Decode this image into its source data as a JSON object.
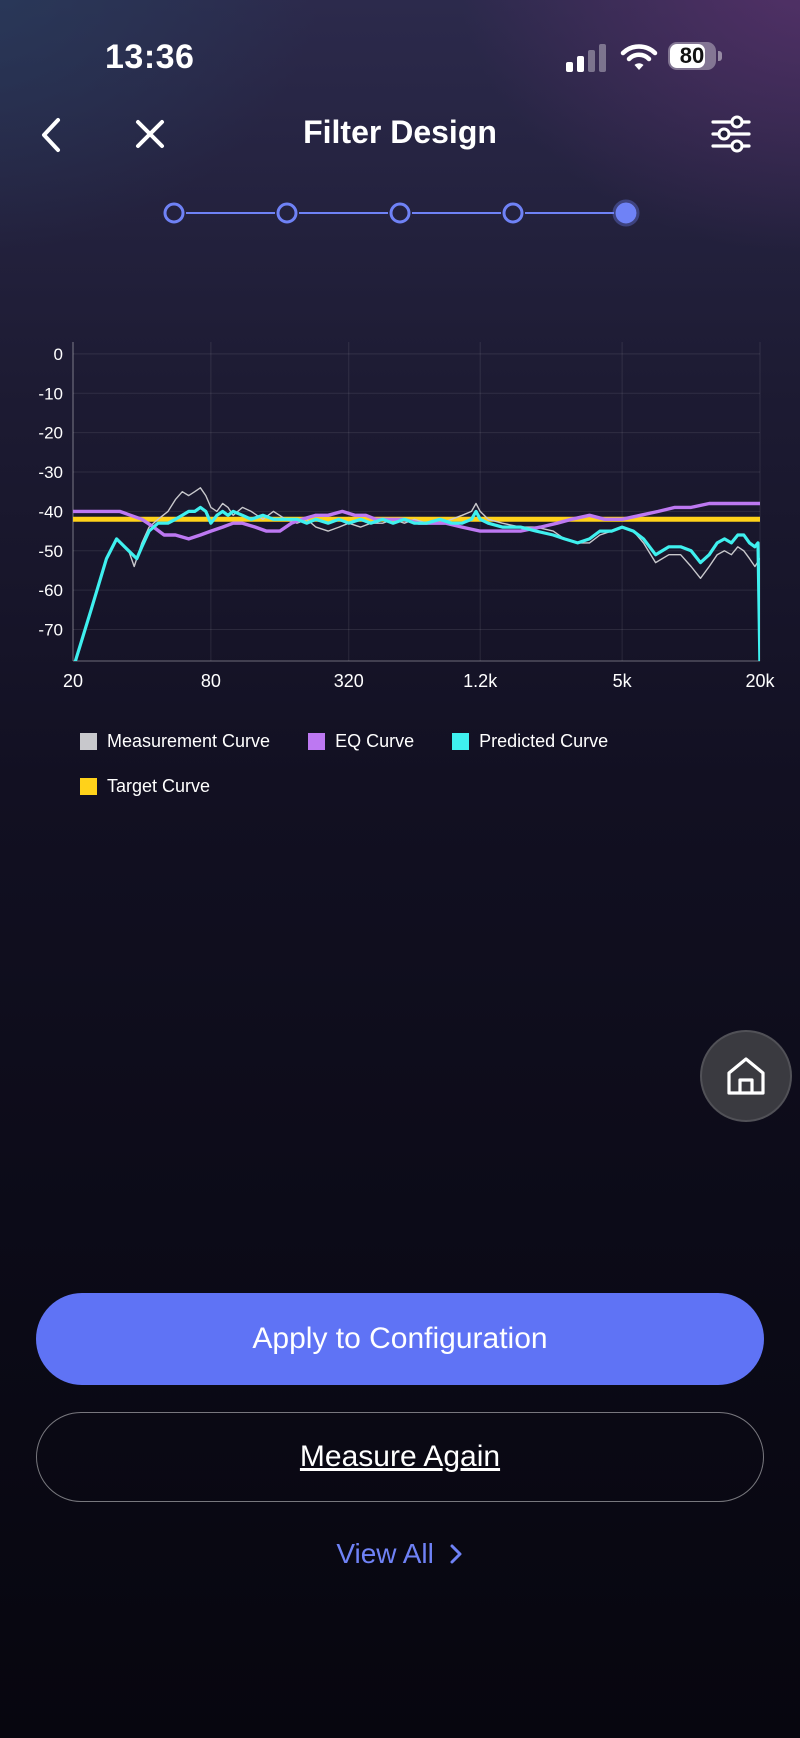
{
  "status_bar": {
    "time": "13:36",
    "battery_level": "80",
    "icons": [
      "signal-icon",
      "wifi-icon",
      "battery-icon"
    ]
  },
  "nav": {
    "title": "Filter Design",
    "left_icons": [
      "chevron-left-icon",
      "close-icon"
    ],
    "right_icon": "sliders-icon"
  },
  "stepper": {
    "steps": 5,
    "current": 5,
    "accent_color": "#6f82f6"
  },
  "chart_data": {
    "type": "line",
    "x_scale": "log",
    "x_ticks": [
      "20",
      "80",
      "320",
      "1.2k",
      "5k",
      "20k"
    ],
    "y_ticks": [
      "0",
      "-10",
      "-20",
      "-30",
      "-40",
      "-50",
      "-60",
      "-70"
    ],
    "ylim": [
      -78,
      2
    ],
    "xlim": [
      20,
      20000
    ],
    "grid": true,
    "legend_position": "bottom",
    "series": [
      {
        "name": "Measurement Curve",
        "color": "#c8c8cc",
        "points": [
          [
            20,
            -80
          ],
          [
            24,
            -65
          ],
          [
            28,
            -52
          ],
          [
            31,
            -47
          ],
          [
            35,
            -50
          ],
          [
            37,
            -54
          ],
          [
            40,
            -48
          ],
          [
            43,
            -44
          ],
          [
            47,
            -42
          ],
          [
            52,
            -40
          ],
          [
            56,
            -37
          ],
          [
            60,
            -35
          ],
          [
            64,
            -36
          ],
          [
            68,
            -35
          ],
          [
            72,
            -34
          ],
          [
            76,
            -36
          ],
          [
            80,
            -39
          ],
          [
            85,
            -40
          ],
          [
            90,
            -38
          ],
          [
            95,
            -39
          ],
          [
            100,
            -41
          ],
          [
            110,
            -39
          ],
          [
            120,
            -40
          ],
          [
            135,
            -42
          ],
          [
            150,
            -40
          ],
          [
            170,
            -42
          ],
          [
            190,
            -43
          ],
          [
            210,
            -42
          ],
          [
            230,
            -44
          ],
          [
            260,
            -45
          ],
          [
            290,
            -44
          ],
          [
            320,
            -43
          ],
          [
            360,
            -44
          ],
          [
            400,
            -43
          ],
          [
            450,
            -43
          ],
          [
            500,
            -42
          ],
          [
            560,
            -43
          ],
          [
            620,
            -42
          ],
          [
            700,
            -43
          ],
          [
            800,
            -43
          ],
          [
            900,
            -42
          ],
          [
            1000,
            -41
          ],
          [
            1100,
            -40
          ],
          [
            1150,
            -38
          ],
          [
            1200,
            -40
          ],
          [
            1300,
            -42
          ],
          [
            1500,
            -43
          ],
          [
            1800,
            -44
          ],
          [
            2100,
            -44
          ],
          [
            2500,
            -45
          ],
          [
            2800,
            -47
          ],
          [
            3200,
            -48
          ],
          [
            3600,
            -48
          ],
          [
            4000,
            -46
          ],
          [
            4500,
            -45
          ],
          [
            5000,
            -44
          ],
          [
            5600,
            -45
          ],
          [
            6200,
            -48
          ],
          [
            7000,
            -53
          ],
          [
            8000,
            -51
          ],
          [
            9000,
            -51
          ],
          [
            10000,
            -54
          ],
          [
            11000,
            -57
          ],
          [
            12000,
            -54
          ],
          [
            13000,
            -51
          ],
          [
            14000,
            -50
          ],
          [
            15000,
            -51
          ],
          [
            16000,
            -49
          ],
          [
            17000,
            -50
          ],
          [
            18000,
            -52
          ],
          [
            19000,
            -54
          ],
          [
            20000,
            -52
          ]
        ]
      },
      {
        "name": "EQ Curve",
        "color": "#bd78f2",
        "points": [
          [
            20,
            -40
          ],
          [
            25,
            -40
          ],
          [
            32,
            -40
          ],
          [
            40,
            -42
          ],
          [
            45,
            -44
          ],
          [
            50,
            -46
          ],
          [
            56,
            -46
          ],
          [
            64,
            -47
          ],
          [
            72,
            -46
          ],
          [
            80,
            -45
          ],
          [
            90,
            -44
          ],
          [
            100,
            -43
          ],
          [
            110,
            -43
          ],
          [
            125,
            -44
          ],
          [
            140,
            -45
          ],
          [
            160,
            -45
          ],
          [
            180,
            -43
          ],
          [
            200,
            -42
          ],
          [
            230,
            -41
          ],
          [
            260,
            -41
          ],
          [
            300,
            -40
          ],
          [
            340,
            -41
          ],
          [
            380,
            -41
          ],
          [
            420,
            -42
          ],
          [
            480,
            -42
          ],
          [
            550,
            -42
          ],
          [
            650,
            -43
          ],
          [
            750,
            -43
          ],
          [
            850,
            -43
          ],
          [
            1000,
            -44
          ],
          [
            1200,
            -45
          ],
          [
            1500,
            -45
          ],
          [
            1800,
            -45
          ],
          [
            2200,
            -44
          ],
          [
            2600,
            -43
          ],
          [
            3000,
            -42
          ],
          [
            3600,
            -41
          ],
          [
            4200,
            -42
          ],
          [
            5000,
            -42
          ],
          [
            6000,
            -41
          ],
          [
            7200,
            -40
          ],
          [
            8500,
            -39
          ],
          [
            10000,
            -39
          ],
          [
            12000,
            -38
          ],
          [
            14000,
            -38
          ],
          [
            17000,
            -38
          ],
          [
            20000,
            -38
          ]
        ]
      },
      {
        "name": "Predicted Curve",
        "color": "#3ff0ef",
        "points": [
          [
            20,
            -80
          ],
          [
            24,
            -65
          ],
          [
            28,
            -52
          ],
          [
            31,
            -47
          ],
          [
            35,
            -50
          ],
          [
            38,
            -52
          ],
          [
            40,
            -49
          ],
          [
            43,
            -45
          ],
          [
            47,
            -43
          ],
          [
            52,
            -43
          ],
          [
            56,
            -42
          ],
          [
            60,
            -41
          ],
          [
            64,
            -40
          ],
          [
            68,
            -40
          ],
          [
            72,
            -39
          ],
          [
            76,
            -40
          ],
          [
            80,
            -43
          ],
          [
            85,
            -41
          ],
          [
            90,
            -40
          ],
          [
            95,
            -41
          ],
          [
            100,
            -40
          ],
          [
            110,
            -41
          ],
          [
            120,
            -42
          ],
          [
            135,
            -41
          ],
          [
            150,
            -42
          ],
          [
            170,
            -42
          ],
          [
            190,
            -42
          ],
          [
            210,
            -43
          ],
          [
            230,
            -42
          ],
          [
            260,
            -43
          ],
          [
            290,
            -42
          ],
          [
            320,
            -43
          ],
          [
            360,
            -42
          ],
          [
            400,
            -43
          ],
          [
            450,
            -42
          ],
          [
            500,
            -43
          ],
          [
            560,
            -42
          ],
          [
            620,
            -43
          ],
          [
            700,
            -43
          ],
          [
            800,
            -42
          ],
          [
            900,
            -43
          ],
          [
            1000,
            -43
          ],
          [
            1100,
            -42
          ],
          [
            1150,
            -40
          ],
          [
            1200,
            -42
          ],
          [
            1300,
            -43
          ],
          [
            1500,
            -44
          ],
          [
            1800,
            -44
          ],
          [
            2100,
            -45
          ],
          [
            2500,
            -46
          ],
          [
            2800,
            -47
          ],
          [
            3200,
            -48
          ],
          [
            3600,
            -47
          ],
          [
            4000,
            -45
          ],
          [
            4500,
            -45
          ],
          [
            5000,
            -44
          ],
          [
            5600,
            -45
          ],
          [
            6200,
            -47
          ],
          [
            7000,
            -51
          ],
          [
            8000,
            -49
          ],
          [
            9000,
            -49
          ],
          [
            10000,
            -50
          ],
          [
            11000,
            -53
          ],
          [
            12000,
            -51
          ],
          [
            13000,
            -48
          ],
          [
            14000,
            -47
          ],
          [
            15000,
            -48
          ],
          [
            16000,
            -46
          ],
          [
            17000,
            -46
          ],
          [
            18000,
            -48
          ],
          [
            19000,
            -49
          ],
          [
            19600,
            -48
          ],
          [
            20000,
            -80
          ]
        ]
      },
      {
        "name": "Target Curve",
        "color": "#ffd21a",
        "points": [
          [
            20,
            -42
          ],
          [
            20000,
            -42
          ]
        ]
      }
    ]
  },
  "legend": {
    "items": [
      {
        "label": "Measurement Curve",
        "color": "#c8c8cc"
      },
      {
        "label": "EQ Curve",
        "color": "#bd78f2"
      },
      {
        "label": "Predicted Curve",
        "color": "#3ff0ef"
      },
      {
        "label": "Target Curve",
        "color": "#ffd21a"
      }
    ]
  },
  "home_button": {
    "icon": "home-icon"
  },
  "actions": {
    "apply_label": "Apply to Configuration",
    "measure_label": "Measure Again",
    "view_all_label": "View All",
    "view_all_icon": "chevron-right-icon"
  }
}
